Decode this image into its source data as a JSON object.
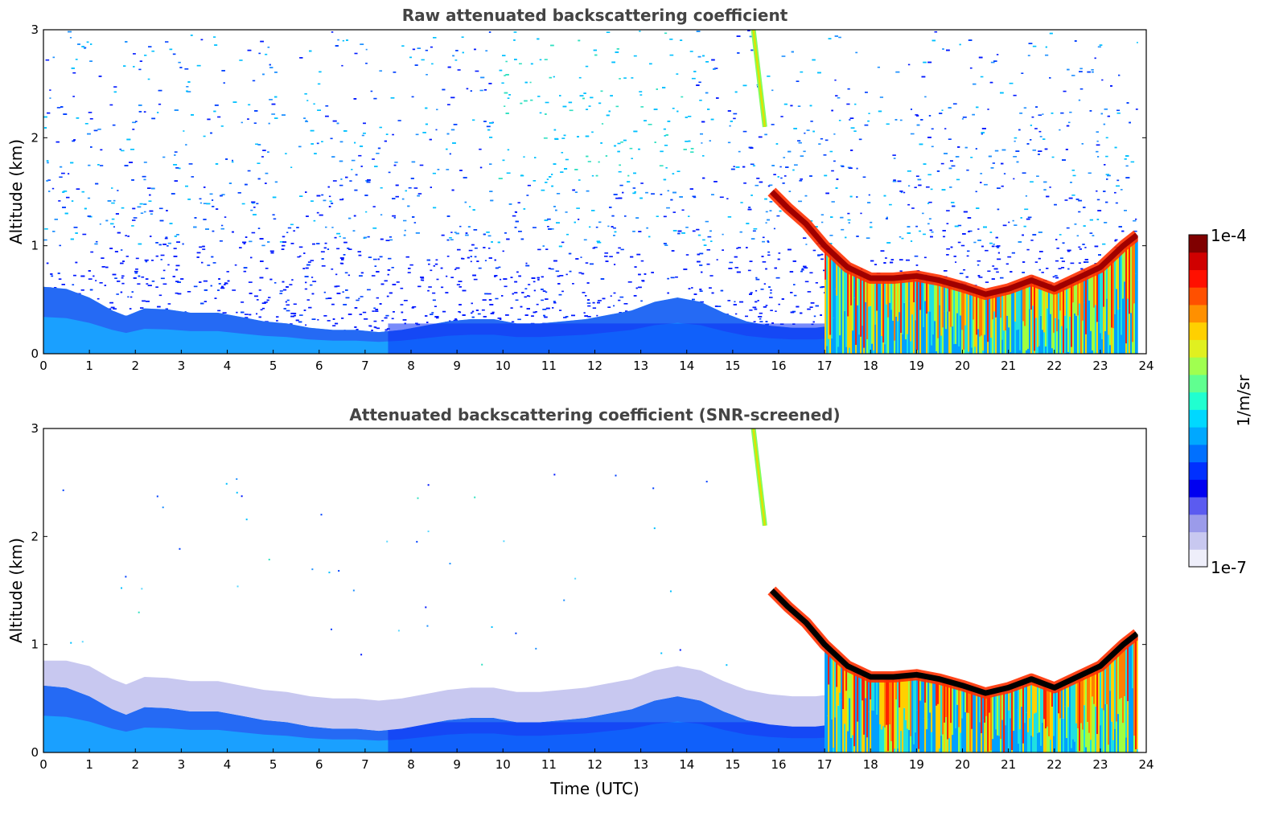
{
  "chart_data": [
    {
      "type": "heatmap",
      "title": "Raw attenuated backscattering coefficient",
      "xlabel": "",
      "ylabel": "Altitude (km)",
      "xlim": [
        0,
        24
      ],
      "ylim": [
        0,
        3
      ],
      "x_ticks": [
        "0",
        "1",
        "2",
        "3",
        "4",
        "5",
        "6",
        "7",
        "8",
        "9",
        "10",
        "11",
        "12",
        "13",
        "14",
        "15",
        "16",
        "17",
        "18",
        "19",
        "20",
        "21",
        "22",
        "23",
        "24"
      ],
      "y_ticks": [
        "0",
        "1",
        "2",
        "3"
      ],
      "background_noise": "dense",
      "cloud_layers": [
        {
          "x": [
            15.85,
            16.2,
            16.6,
            17.0,
            17.5,
            18.0,
            18.5,
            19.0,
            19.5,
            20.0,
            20.5,
            21.0,
            21.5,
            22.0,
            22.5,
            23.0,
            23.5,
            23.8
          ],
          "y": [
            1.5,
            1.35,
            1.2,
            1.0,
            0.8,
            0.7,
            0.7,
            0.72,
            0.68,
            0.62,
            0.55,
            0.6,
            0.68,
            0.6,
            0.7,
            0.8,
            1.0,
            1.1
          ]
        }
      ],
      "fall_streak": {
        "x": [
          15.45,
          15.7
        ],
        "y": [
          3.0,
          2.1
        ]
      }
    },
    {
      "type": "heatmap",
      "title": "Attenuated backscattering coefficient (SNR-screened)",
      "xlabel": "Time (UTC)",
      "ylabel": "Altitude (km)",
      "xlim": [
        0,
        24
      ],
      "ylim": [
        0,
        3
      ],
      "x_ticks": [
        "0",
        "1",
        "2",
        "3",
        "4",
        "5",
        "6",
        "7",
        "8",
        "9",
        "10",
        "11",
        "12",
        "13",
        "14",
        "15",
        "16",
        "17",
        "18",
        "19",
        "20",
        "21",
        "22",
        "23",
        "24"
      ],
      "y_ticks": [
        "0",
        "1",
        "2",
        "3"
      ],
      "background_noise": "screened",
      "cloud_layers": [
        {
          "x": [
            15.85,
            16.2,
            16.6,
            17.0,
            17.5,
            18.0,
            18.5,
            19.0,
            19.5,
            20.0,
            20.5,
            21.0,
            21.5,
            22.0,
            22.5,
            23.0,
            23.5,
            23.8
          ],
          "y": [
            1.5,
            1.35,
            1.2,
            1.0,
            0.8,
            0.7,
            0.7,
            0.72,
            0.68,
            0.62,
            0.55,
            0.6,
            0.68,
            0.6,
            0.7,
            0.8,
            1.0,
            1.1
          ]
        }
      ],
      "fall_streak": {
        "x": [
          15.45,
          15.7
        ],
        "y": [
          3.0,
          2.1
        ]
      }
    }
  ],
  "colorbar": {
    "min_label": "1e-7",
    "max_label": "1e-4",
    "label": "1/m/sr",
    "colors": [
      "#eeeefa",
      "#c8c8f0",
      "#9b9bea",
      "#5b5bf0",
      "#0000f0",
      "#0030ff",
      "#0070ff",
      "#00a8ff",
      "#00d8ff",
      "#20ffd0",
      "#60ff90",
      "#a0ff50",
      "#e0f020",
      "#ffd000",
      "#ff9000",
      "#ff5000",
      "#ff1000",
      "#d00000",
      "#800000"
    ]
  },
  "boundary_layer": {
    "x": [
      0,
      0.5,
      1,
      1.5,
      1.8,
      2.2,
      2.7,
      3.2,
      3.8,
      4.3,
      4.8,
      5.3,
      5.8,
      6.3,
      6.8,
      7.3,
      7.8,
      8.3,
      8.8,
      9.3,
      9.8,
      10.3,
      10.8,
      11.3,
      11.8,
      12.3,
      12.8,
      13.3,
      13.8,
      14.3,
      14.8,
      15.3,
      15.8,
      16.3,
      16.8,
      17.0
    ],
    "y": [
      0.62,
      0.6,
      0.52,
      0.4,
      0.35,
      0.42,
      0.41,
      0.38,
      0.38,
      0.34,
      0.3,
      0.28,
      0.24,
      0.22,
      0.22,
      0.2,
      0.22,
      0.26,
      0.3,
      0.32,
      0.32,
      0.28,
      0.28,
      0.3,
      0.32,
      0.36,
      0.4,
      0.48,
      0.52,
      0.48,
      0.38,
      0.3,
      0.26,
      0.24,
      0.24,
      0.25
    ]
  },
  "colors": {
    "pbl_top": "#2a58f0",
    "pbl_bottom": "#1aa0ff",
    "noise": [
      "#0018ff",
      "#0040ff",
      "#1e90ff",
      "#00c0ff",
      "#5ad8ff",
      "#30e0c0"
    ],
    "cloud_core": "#a00000",
    "cloud_core_screened": "#000000",
    "cloud_mid": [
      "#ff2000",
      "#ff8000",
      "#ffd000",
      "#a0ff40",
      "#20e0e0",
      "#00a0ff"
    ],
    "fall_streak": [
      "#e0e000",
      "#80ff60"
    ]
  }
}
